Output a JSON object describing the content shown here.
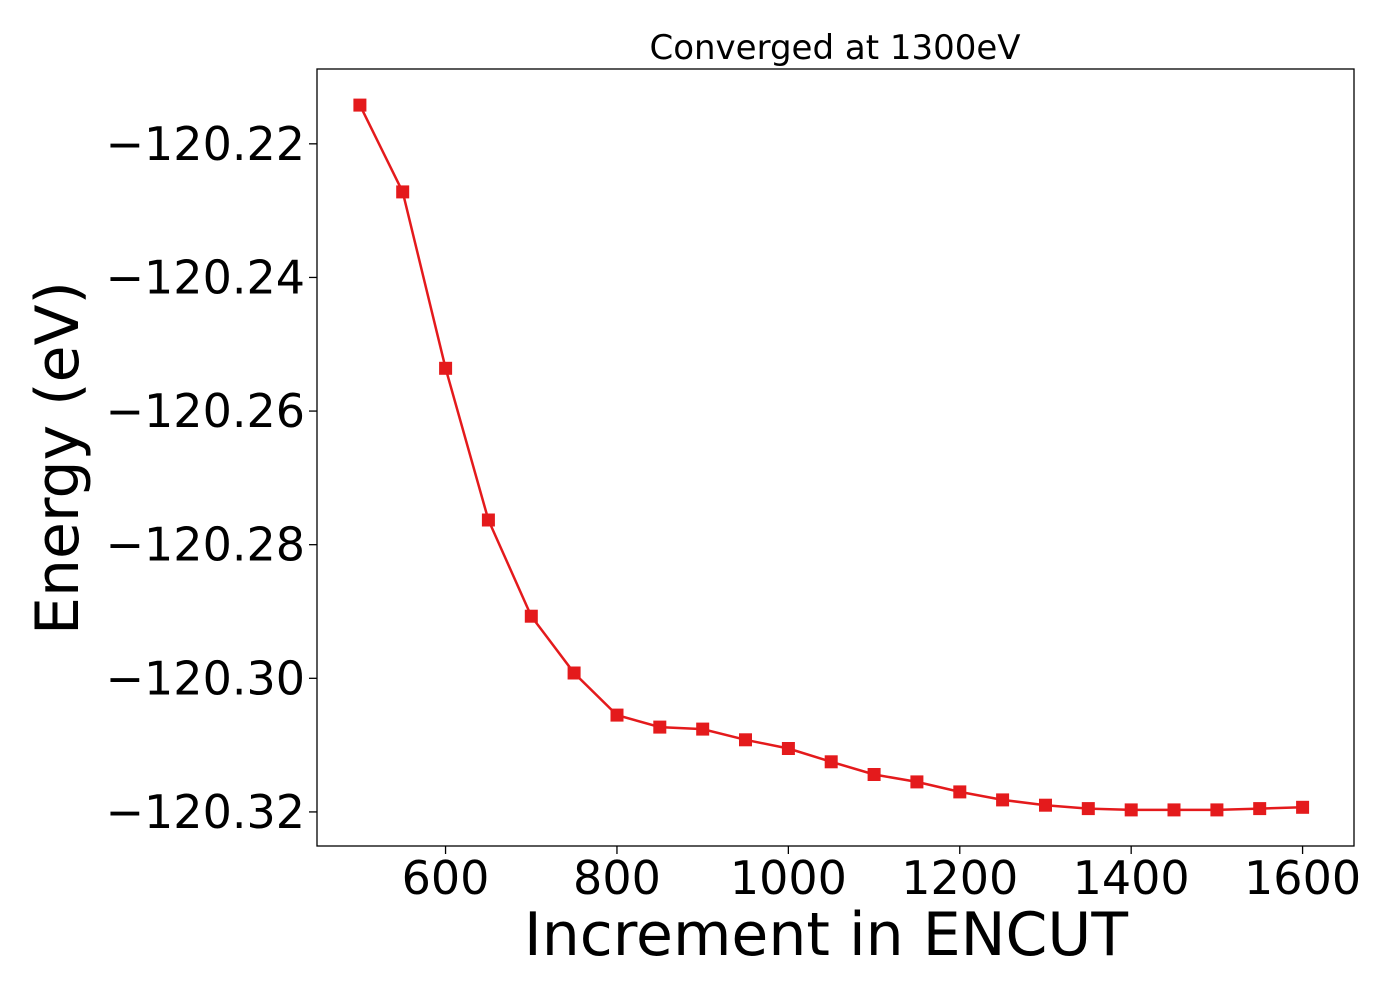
{
  "chart_data": {
    "type": "line",
    "title": "Converged at 1300eV",
    "xlabel": "Increment in ENCUT",
    "ylabel": "Energy (eV)",
    "xlim": [
      450,
      1660
    ],
    "ylim": [
      -120.3251,
      -120.2088
    ],
    "x_ticks": [
      600,
      800,
      1000,
      1200,
      1400,
      1600
    ],
    "x_tick_labels": [
      "600",
      "800",
      "1000",
      "1200",
      "1400",
      "1600"
    ],
    "y_ticks": [
      -120.22,
      -120.24,
      -120.26,
      -120.28,
      -120.3,
      -120.32
    ],
    "y_tick_labels": [
      "−120.22",
      "−120.24",
      "−120.26",
      "−120.28",
      "−120.30",
      "−120.32"
    ],
    "grid": false,
    "color": "#e41a1c",
    "marker": "square",
    "series": [
      {
        "x": [
          500,
          550,
          600,
          650,
          700,
          750,
          800,
          850,
          900,
          950,
          1000,
          1050,
          1100,
          1150,
          1200,
          1250,
          1300,
          1350,
          1400,
          1450,
          1500,
          1550,
          1600
        ],
        "values": [
          -120.2142,
          -120.2272,
          -120.2536,
          -120.2763,
          -120.2907,
          -120.2992,
          -120.3055,
          -120.3073,
          -120.3076,
          -120.3092,
          -120.3105,
          -120.3125,
          -120.3144,
          -120.3155,
          -120.317,
          -120.3182,
          -120.319,
          -120.3195,
          -120.3197,
          -120.3197,
          -120.3197,
          -120.3195,
          -120.3193
        ]
      }
    ]
  }
}
